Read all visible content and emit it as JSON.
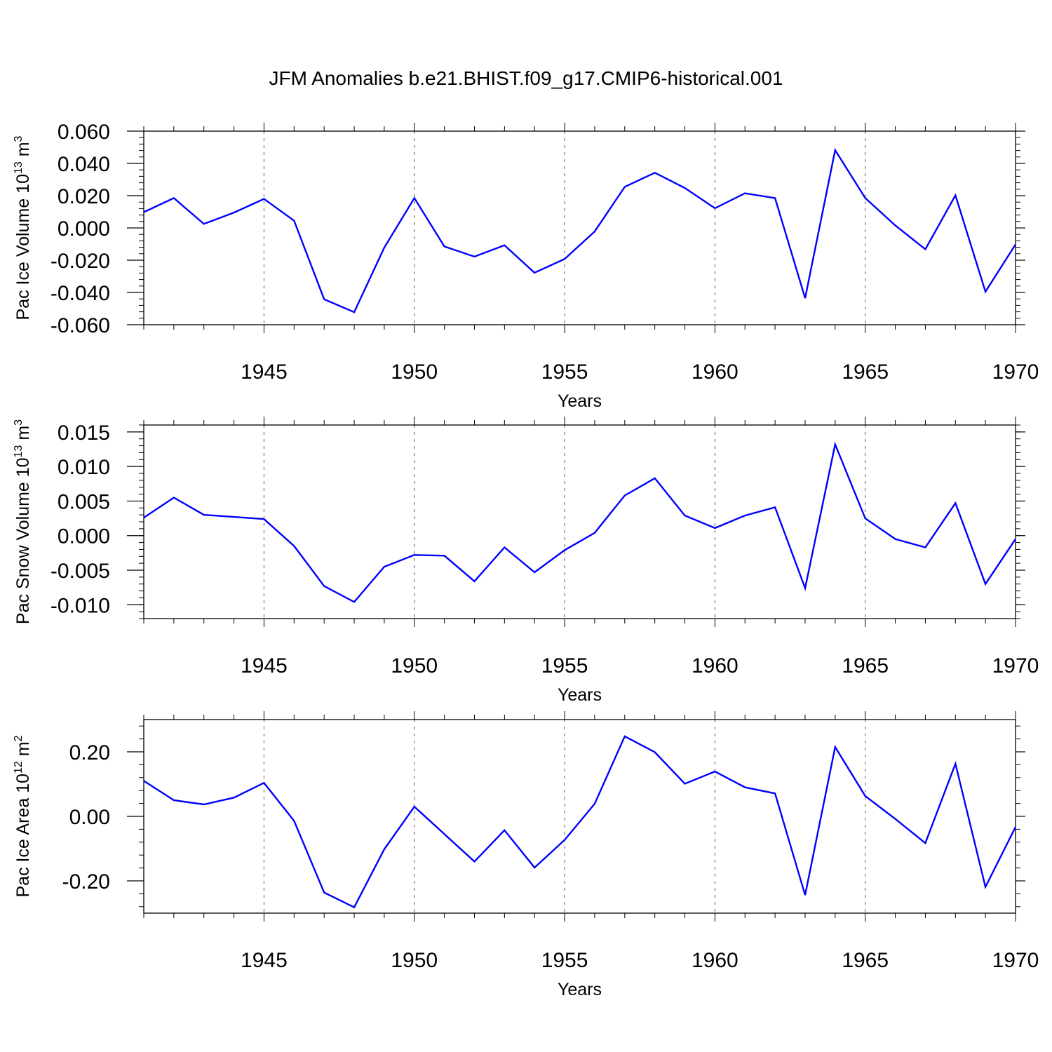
{
  "title": "JFM Anomalies b.e21.BHIST.f09_g17.CMIP6-historical.001",
  "chart_data": [
    {
      "type": "line",
      "ylabel": "Pac Ice Volume 10",
      "ylabel_sup": "13",
      "ylabel_unit": "m",
      "ylabel_unit_sup": "3",
      "xlabel": "Years",
      "xlim": [
        1941,
        1970
      ],
      "ylim": [
        -0.06,
        0.06
      ],
      "yticks": [
        -0.06,
        -0.04,
        -0.02,
        0.0,
        0.02,
        0.04,
        0.06
      ],
      "ytick_labels": [
        "-0.060",
        "-0.040",
        "-0.020",
        "0.000",
        "0.020",
        "0.040",
        "0.060"
      ],
      "xticks": [
        1945,
        1950,
        1955,
        1960,
        1965,
        1970
      ],
      "xtick_labels": [
        "1945",
        "1950",
        "1955",
        "1960",
        "1965",
        "1970"
      ],
      "line_color": "#0000ff",
      "x": [
        1941,
        1942,
        1943,
        1944,
        1945,
        1946,
        1947,
        1948,
        1949,
        1950,
        1951,
        1952,
        1953,
        1954,
        1955,
        1956,
        1957,
        1958,
        1959,
        1960,
        1961,
        1962,
        1963,
        1964,
        1965,
        1966,
        1967,
        1968,
        1969,
        1970
      ],
      "y": [
        0.0098,
        0.0185,
        0.0025,
        0.0095,
        0.018,
        0.0045,
        -0.0442,
        -0.0522,
        -0.0122,
        0.0185,
        -0.0115,
        -0.0178,
        -0.0108,
        -0.0278,
        -0.0192,
        -0.0022,
        0.0255,
        0.0342,
        0.0248,
        0.0122,
        0.0215,
        0.0185,
        -0.0435,
        0.0482,
        0.0185,
        0.0015,
        -0.0132,
        0.0202,
        -0.0395,
        -0.0102
      ]
    },
    {
      "type": "line",
      "ylabel": "Pac Snow Volume 10",
      "ylabel_sup": "13",
      "ylabel_unit": "m",
      "ylabel_unit_sup": "3",
      "xlabel": "Years",
      "xlim": [
        1941,
        1970
      ],
      "ylim": [
        -0.012,
        0.016
      ],
      "yticks": [
        -0.01,
        -0.005,
        0.0,
        0.005,
        0.01,
        0.015
      ],
      "ytick_labels": [
        "-0.010",
        "-0.005",
        "0.000",
        "0.005",
        "0.010",
        "0.015"
      ],
      "xticks": [
        1945,
        1950,
        1955,
        1960,
        1965,
        1970
      ],
      "xtick_labels": [
        "1945",
        "1950",
        "1955",
        "1960",
        "1965",
        "1970"
      ],
      "line_color": "#0000ff",
      "x": [
        1941,
        1942,
        1943,
        1944,
        1945,
        1946,
        1947,
        1948,
        1949,
        1950,
        1951,
        1952,
        1953,
        1954,
        1955,
        1956,
        1957,
        1958,
        1959,
        1960,
        1961,
        1962,
        1963,
        1964,
        1965,
        1966,
        1967,
        1968,
        1969,
        1970
      ],
      "y": [
        0.0026,
        0.0055,
        0.003,
        0.0027,
        0.0024,
        -0.0015,
        -0.0073,
        -0.0096,
        -0.0045,
        -0.0028,
        -0.0029,
        -0.0066,
        -0.0017,
        -0.0053,
        -0.0021,
        0.0004,
        0.0058,
        0.0083,
        0.0029,
        0.0011,
        0.0029,
        0.0041,
        -0.0076,
        0.0132,
        0.0025,
        -0.0005,
        -0.0017,
        0.0047,
        -0.007,
        -0.0005
      ]
    },
    {
      "type": "line",
      "ylabel": "Pac Ice Area 10",
      "ylabel_sup": "12",
      "ylabel_unit": "m",
      "ylabel_unit_sup": "2",
      "xlabel": "Years",
      "xlim": [
        1941,
        1970
      ],
      "ylim": [
        -0.3,
        0.3
      ],
      "yticks": [
        -0.2,
        0.0,
        0.2
      ],
      "ytick_labels": [
        "-0.20",
        "0.00",
        "0.20"
      ],
      "xticks": [
        1945,
        1950,
        1955,
        1960,
        1965,
        1970
      ],
      "xtick_labels": [
        "1945",
        "1950",
        "1955",
        "1960",
        "1965",
        "1970"
      ],
      "line_color": "#0000ff",
      "x": [
        1941,
        1942,
        1943,
        1944,
        1945,
        1946,
        1947,
        1948,
        1949,
        1950,
        1951,
        1952,
        1953,
        1954,
        1955,
        1956,
        1957,
        1958,
        1959,
        1960,
        1961,
        1962,
        1963,
        1964,
        1965,
        1966,
        1967,
        1968,
        1969,
        1970
      ],
      "y": [
        0.11,
        0.05,
        0.037,
        0.058,
        0.104,
        -0.014,
        -0.236,
        -0.282,
        -0.102,
        0.03,
        -0.055,
        -0.14,
        -0.043,
        -0.159,
        -0.073,
        0.039,
        0.248,
        0.199,
        0.101,
        0.139,
        0.09,
        0.071,
        -0.244,
        0.215,
        0.063,
        -0.008,
        -0.083,
        0.163,
        -0.219,
        -0.033
      ]
    }
  ]
}
